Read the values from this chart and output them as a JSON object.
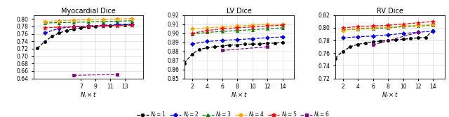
{
  "titles": [
    "Myocardial Dice",
    "LV Dice",
    "RV Dice"
  ],
  "xlabel": "$N_l \\times t$",
  "panels": [
    "myocardial",
    "lv",
    "rv"
  ],
  "series": {
    "N1": {
      "label": "$N_l = 1$",
      "color": "black",
      "marker": "o",
      "linestyle": "--",
      "x": [
        1,
        2,
        3,
        4,
        5,
        6,
        7,
        8,
        9,
        10,
        11,
        12,
        13,
        14
      ],
      "myocardial": [
        0.721,
        0.739,
        0.753,
        0.762,
        0.769,
        0.773,
        0.776,
        0.778,
        0.78,
        0.781,
        0.782,
        0.783,
        0.784,
        0.785
      ],
      "lv": [
        0.867,
        0.877,
        0.882,
        0.884,
        0.885,
        0.886,
        0.887,
        0.887,
        0.888,
        0.888,
        0.888,
        0.889,
        0.889,
        0.89
      ],
      "rv": [
        0.752,
        0.763,
        0.77,
        0.774,
        0.776,
        0.778,
        0.779,
        0.78,
        0.781,
        0.782,
        0.783,
        0.784,
        0.785,
        0.796
      ]
    },
    "N2": {
      "label": "$N_l = 2$",
      "color": "blue",
      "marker": "D",
      "linestyle": "--",
      "x": [
        2,
        4,
        6,
        8,
        10,
        12,
        14
      ],
      "myocardial": [
        0.762,
        0.775,
        0.779,
        0.781,
        0.783,
        0.785,
        0.786
      ],
      "lv": [
        0.888,
        0.891,
        0.892,
        0.893,
        0.894,
        0.895,
        0.896
      ],
      "rv": [
        0.784,
        0.786,
        0.787,
        0.789,
        0.791,
        0.793,
        0.795
      ]
    },
    "N3": {
      "label": "$N_l = 3$",
      "color": "green",
      "marker": "^",
      "linestyle": "--",
      "x": [
        2,
        4,
        6,
        8,
        10,
        12,
        14
      ],
      "myocardial": [
        0.789,
        0.79,
        0.791,
        0.792,
        0.793,
        0.794,
        0.795
      ],
      "lv": [
        0.899,
        0.901,
        0.902,
        0.903,
        0.904,
        0.905,
        0.906
      ],
      "rv": [
        0.797,
        0.798,
        0.799,
        0.8,
        0.802,
        0.803,
        0.804
      ]
    },
    "N4": {
      "label": "$N_l = 4$",
      "color": "orange",
      "marker": "D",
      "linestyle": "--",
      "x": [
        2,
        4,
        6,
        8,
        10,
        12,
        14
      ],
      "myocardial": [
        0.793,
        0.795,
        0.797,
        0.798,
        0.799,
        0.8,
        0.801
      ],
      "lv": [
        0.905,
        0.906,
        0.907,
        0.908,
        0.909,
        0.91,
        0.91
      ],
      "rv": [
        0.796,
        0.799,
        0.8,
        0.801,
        0.803,
        0.804,
        0.805
      ]
    },
    "N5": {
      "label": "$N_l = 5$",
      "color": "red",
      "marker": "*",
      "linestyle": "--",
      "x": [
        2,
        4,
        6,
        8,
        10,
        12,
        14
      ],
      "myocardial": [
        0.776,
        0.778,
        0.779,
        0.78,
        0.781,
        0.782,
        0.783
      ],
      "lv": [
        0.9,
        0.903,
        0.905,
        0.906,
        0.907,
        0.908,
        0.909
      ],
      "rv": [
        0.8,
        0.802,
        0.803,
        0.804,
        0.806,
        0.808,
        0.81
      ]
    },
    "N6": {
      "label": "$N_l = 6$",
      "color": "purple",
      "marker": "s",
      "linestyle": "--",
      "x": [
        6,
        12
      ],
      "myocardial": [
        0.648,
        0.651
      ],
      "lv": [
        0.881,
        0.885
      ],
      "rv": [
        0.773,
        0.793
      ]
    }
  },
  "xlims": {
    "myocardial": [
      0.5,
      15.5
    ],
    "lv": [
      1.0,
      15.5
    ],
    "rv": [
      1.0,
      15.5
    ]
  },
  "xticks": {
    "myocardial": [
      7,
      9,
      11,
      13
    ],
    "lv": [
      2,
      4,
      6,
      8,
      10,
      12,
      14
    ],
    "rv": [
      2,
      4,
      6,
      8,
      10,
      12,
      14
    ]
  },
  "ylims": {
    "myocardial": [
      0.64,
      0.81
    ],
    "lv": [
      0.85,
      0.92
    ],
    "rv": [
      0.72,
      0.82
    ]
  },
  "yticks": {
    "myocardial": [
      0.64,
      0.66,
      0.68,
      0.7,
      0.72,
      0.74,
      0.76,
      0.78,
      0.8
    ],
    "lv": [
      0.85,
      0.86,
      0.87,
      0.88,
      0.89,
      0.9,
      0.91,
      0.92
    ],
    "rv": [
      0.72,
      0.74,
      0.76,
      0.78,
      0.8,
      0.82
    ]
  },
  "legend_labels": [
    "$N_l = 1$",
    "$N_l = 2$",
    "$N_l = 3$",
    "$N_l = 4$",
    "$N_l = 5$",
    "$N_l = 6$"
  ]
}
